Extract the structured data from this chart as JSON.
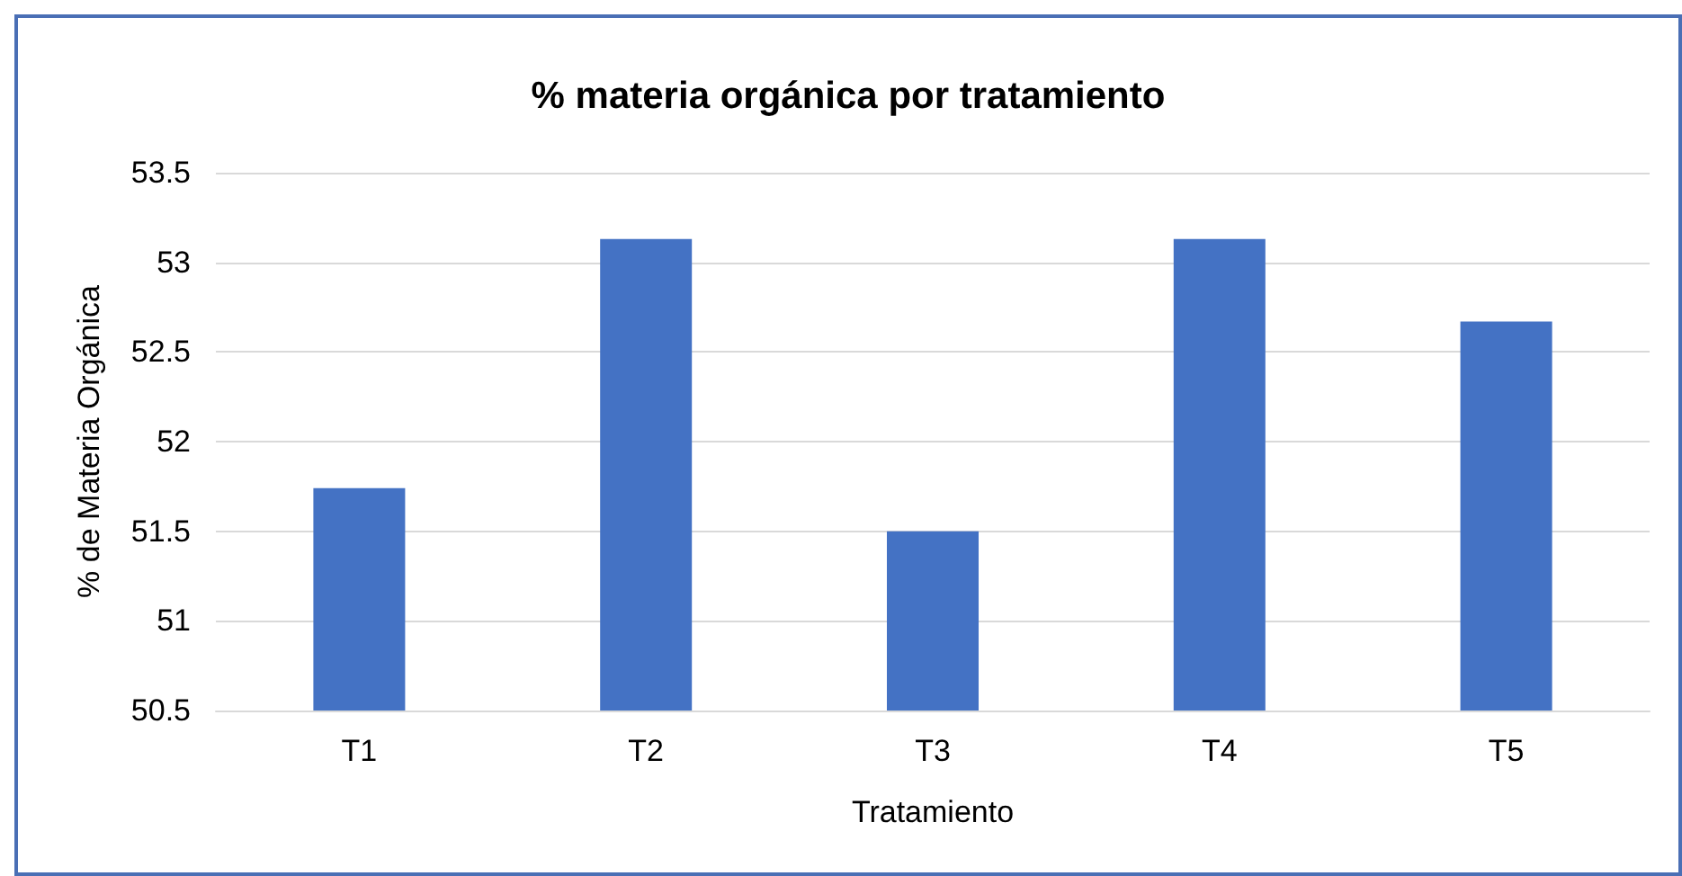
{
  "chart_data": {
    "type": "bar",
    "title": "% materia orgánica por tratamiento",
    "xlabel": "Tratamiento",
    "ylabel": "% de Materia Orgánica",
    "categories": [
      "T1",
      "T2",
      "T3",
      "T4",
      "T5"
    ],
    "values": [
      51.74,
      53.13,
      51.5,
      53.13,
      52.67
    ],
    "color": "#4472c4",
    "ylim": [
      50.5,
      53.5
    ],
    "yticks": [
      50.5,
      51,
      51.5,
      52,
      52.5,
      53,
      53.5
    ],
    "grid": "y"
  }
}
